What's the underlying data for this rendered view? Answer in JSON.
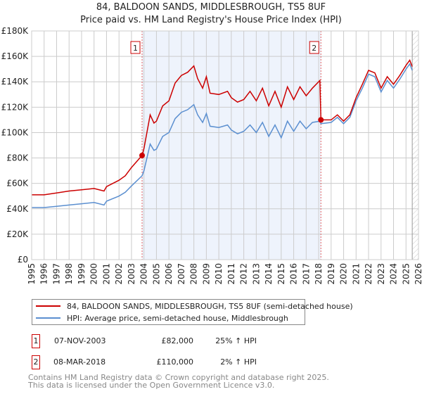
{
  "title_line1": "84, BALDOON SANDS, MIDDLESBROUGH, TS5 8UF",
  "title_line2": "Price paid vs. HM Land Registry's House Price Index (HPI)",
  "legend": {
    "price_label": "84, BALDOON SANDS, MIDDLESBROUGH, TS5 8UF (semi-detached house)",
    "hpi_label": "HPI: Average price, semi-detached house, Middlesbrough"
  },
  "sales": [
    {
      "num": "1",
      "date": "07-NOV-2003",
      "price": "£82,000",
      "hpi": "25% ↑ HPI"
    },
    {
      "num": "2",
      "date": "08-MAR-2018",
      "price": "£110,000",
      "hpi": "2% ↑ HPI"
    }
  ],
  "footer_line1": "Contains HM Land Registry data © Crown copyright and database right 2025.",
  "footer_line2": "This data is licensed under the Open Government Licence v3.0.",
  "colors": {
    "price": "#cc0000",
    "hpi": "#5b8fd0",
    "shade": "#eef3fc"
  },
  "chart_data": {
    "type": "line",
    "xlim": [
      1995,
      2026
    ],
    "ylim": [
      0,
      180000
    ],
    "x_ticks": [
      "1995",
      "1996",
      "1997",
      "1998",
      "1999",
      "2000",
      "2001",
      "2002",
      "2003",
      "2004",
      "2005",
      "2006",
      "2007",
      "2008",
      "2009",
      "2010",
      "2011",
      "2012",
      "2013",
      "2014",
      "2015",
      "2016",
      "2017",
      "2018",
      "2019",
      "2020",
      "2021",
      "2022",
      "2023",
      "2024",
      "2025",
      "2026"
    ],
    "y_ticks": [
      "£0",
      "£20K",
      "£40K",
      "£60K",
      "£80K",
      "£100K",
      "£120K",
      "£140K",
      "£160K",
      "£180K"
    ],
    "grid": true,
    "sale_markers": [
      {
        "label": "1",
        "x": 2003.85,
        "y": 82000
      },
      {
        "label": "2",
        "x": 2018.18,
        "y": 110000
      }
    ],
    "data_end": 2025.5,
    "series": [
      {
        "name": "price",
        "x": [
          1995,
          1996,
          1997,
          1998,
          1999,
          2000,
          2000.8,
          2001,
          2002,
          2002.5,
          2003,
          2003.85,
          2004,
          2004.5,
          2004.8,
          2005,
          2005.5,
          2006,
          2006.5,
          2007,
          2007.5,
          2008,
          2008.3,
          2008.7,
          2009,
          2009.3,
          2010,
          2010.7,
          2011,
          2011.5,
          2012,
          2012.5,
          2013,
          2013.5,
          2014,
          2014.5,
          2015,
          2015.5,
          2016,
          2016.5,
          2017,
          2017.5,
          2018.1,
          2018.18,
          2019,
          2019.5,
          2020,
          2020.5,
          2021,
          2021.5,
          2022,
          2022.5,
          2023,
          2023.5,
          2024,
          2024.5,
          2025,
          2025.3,
          2025.5
        ],
        "values": [
          51,
          51,
          52.5,
          54,
          55,
          56,
          54,
          57.5,
          62.5,
          66,
          72.5,
          82,
          87.5,
          114,
          107.5,
          109,
          121,
          125,
          139,
          145,
          147.5,
          152.5,
          142.5,
          135,
          144,
          131,
          130,
          132.5,
          127.5,
          124,
          126,
          132.5,
          125,
          135,
          121,
          132.5,
          120,
          136,
          126,
          136,
          129,
          135,
          141,
          110,
          110,
          114,
          109,
          114,
          127.5,
          138,
          149,
          147,
          135,
          144,
          138,
          145,
          153,
          157,
          152
        ]
      },
      {
        "name": "hpi",
        "x": [
          1995,
          1996,
          1997,
          1998,
          1999,
          2000,
          2000.8,
          2001,
          2002,
          2002.5,
          2003,
          2003.85,
          2004,
          2004.5,
          2004.8,
          2005,
          2005.5,
          2006,
          2006.5,
          2007,
          2007.5,
          2008,
          2008.3,
          2008.7,
          2009,
          2009.3,
          2010,
          2010.7,
          2011,
          2011.5,
          2012,
          2012.5,
          2013,
          2013.5,
          2014,
          2014.5,
          2015,
          2015.5,
          2016,
          2016.5,
          2017,
          2017.5,
          2018.1,
          2018.18,
          2019,
          2019.5,
          2020,
          2020.5,
          2021,
          2021.5,
          2022,
          2022.5,
          2023,
          2023.5,
          2024,
          2024.5,
          2025,
          2025.3,
          2025.5
        ],
        "values": [
          41,
          41,
          42,
          43,
          44,
          45,
          43,
          46,
          50,
          53,
          58,
          66,
          70,
          91,
          86,
          87,
          97,
          100,
          111,
          116,
          118,
          122,
          114,
          108,
          115,
          105,
          104,
          106,
          102,
          99,
          101,
          106,
          100,
          108,
          97,
          106,
          96,
          109,
          101,
          109,
          103,
          108,
          109,
          107,
          108,
          112,
          107,
          112,
          125,
          135,
          146,
          144,
          132,
          141,
          135,
          142,
          150,
          154,
          149
        ]
      }
    ],
    "value_unit": "thousand GBP"
  }
}
